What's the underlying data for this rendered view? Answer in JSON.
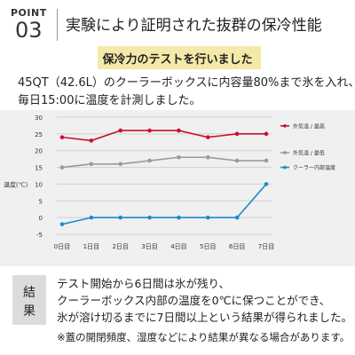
{
  "header": {
    "point_label": "POINT",
    "point_number": "03",
    "title": "実験により証明された抜群の保冷性能"
  },
  "highlight": {
    "text": "保冷力のテストを行いました"
  },
  "intro": {
    "line1": "45QT（42.6L）のクーラーボックスに内容量80%まで氷を入れ、",
    "line2": "毎日15:00に温度を計測しました。"
  },
  "chart_data": {
    "type": "line",
    "ylabel": "温度(℃)",
    "categories": [
      "0日目",
      "1日目",
      "2日目",
      "3日目",
      "4日目",
      "5日目",
      "6日目",
      "7日目"
    ],
    "ylim": [
      -5,
      30
    ],
    "yticks": [
      -5,
      0,
      5,
      10,
      15,
      20,
      25,
      30
    ],
    "grid": true,
    "legend": "right",
    "series": [
      {
        "name": "外気温 / 最高",
        "color": "#c8102e",
        "values": [
          24,
          23,
          26,
          26,
          26,
          24,
          25,
          25
        ]
      },
      {
        "name": "外気温 / 最低",
        "color": "#9a9a9a",
        "values": [
          15,
          16,
          16,
          17,
          18,
          18,
          17,
          17
        ]
      },
      {
        "name": "クーラー内部温度",
        "color": "#1b8ccf",
        "values": [
          -2,
          0,
          0,
          0,
          0,
          0,
          0,
          10
        ]
      }
    ]
  },
  "result": {
    "label_top": "結",
    "label_bottom": "果",
    "line1": "テスト開始から6日間は氷が残り、",
    "line2": "クーラーボックス内部の温度を0℃に保つことができ、",
    "line3": "氷が溶け切るまでに7日間以上という結果が得られました。",
    "note": "※蓋の開閉頻度、湿度などにより結果が異なる場合があります。"
  }
}
